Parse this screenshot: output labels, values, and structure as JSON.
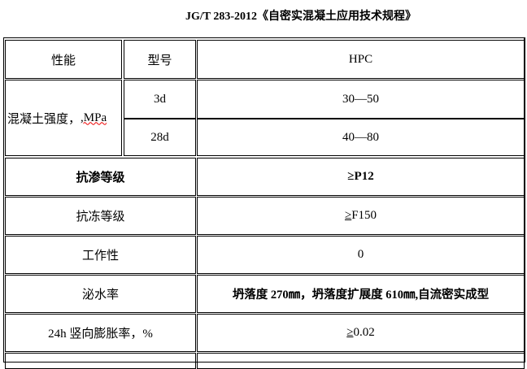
{
  "title": "JG/T 283-2012《自密实混凝土应用技术规程》",
  "header": {
    "col1": "性能",
    "col2": "型号",
    "col3": "HPC"
  },
  "strength": {
    "label": "混凝土强度，",
    "unit": ",MPa",
    "rows": [
      {
        "age": "3d",
        "value": "30—50"
      },
      {
        "age": "28d",
        "value": "40—80"
      }
    ]
  },
  "rows": [
    {
      "label": "抗渗等级",
      "ge": "≥",
      "value": "P12"
    },
    {
      "label": "抗冻等级",
      "ge": "≥",
      "value": "F150"
    },
    {
      "label": "工作性",
      "value": "0"
    },
    {
      "label": "泌水率",
      "value": "坍落度 270㎜，坍落度扩展度 610㎜,自流密实成型"
    },
    {
      "label": "24h 竖向膨胀率，%",
      "ge": "≥",
      "value": "0.02"
    }
  ]
}
